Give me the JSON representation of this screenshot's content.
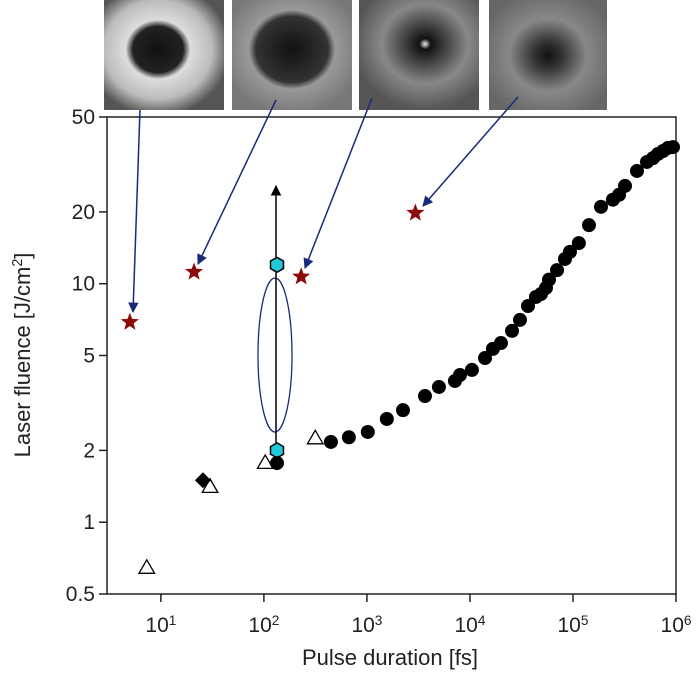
{
  "chart_data": {
    "type": "scatter",
    "x_label": "Pulse duration [fs]",
    "y_label": "Laser fluence [J/cm^2]",
    "xscale": "log",
    "yscale": "log",
    "xlim": [
      3,
      1000000
    ],
    "ylim": [
      0.5,
      50
    ],
    "xticks": [
      {
        "value": 10,
        "label": "10^1"
      },
      {
        "value": 100,
        "label": "10^2"
      },
      {
        "value": 1000,
        "label": "10^3"
      },
      {
        "value": 10000,
        "label": "10^4"
      },
      {
        "value": 100000,
        "label": "10^5"
      },
      {
        "value": 1000000,
        "label": "10^6"
      }
    ],
    "yticks": [
      0.5,
      1,
      2,
      5,
      10,
      20,
      50
    ],
    "series": [
      {
        "marker": "star",
        "color": "#8b0a0a",
        "x": [
          5,
          21,
          230,
          2950
        ],
        "values": [
          6.9,
          11.2,
          10.7,
          19.8
        ]
      },
      {
        "marker": "triangle",
        "color": "#000000",
        "x": [
          7.3,
          30,
          103,
          315
        ],
        "values": [
          0.65,
          1.42,
          1.79,
          2.27
        ]
      },
      {
        "marker": "diamond",
        "color": "#000000",
        "x": [
          25.6
        ],
        "values": [
          1.5
        ]
      },
      {
        "marker": "hexagon",
        "color": "#22c8d8",
        "x": [
          134,
          134
        ],
        "values": [
          12,
          2
        ]
      },
      {
        "marker": "circle",
        "color": "#000000",
        "x": [
          134,
          447,
          668,
          1020,
          1560,
          2240,
          3660,
          5000,
          7150,
          8000,
          10450,
          14000,
          16700,
          20000,
          25600,
          30600,
          36600,
          43700,
          48900,
          54700,
          58500,
          70000,
          83600,
          93500,
          114000,
          143000,
          187000,
          244000,
          280000,
          320000,
          418000,
          523000,
          598000,
          668000,
          748000,
          836000,
          935000
        ],
        "values": [
          1.77,
          2.17,
          2.27,
          2.39,
          2.71,
          2.95,
          3.38,
          3.69,
          3.91,
          4.14,
          4.35,
          4.88,
          5.33,
          5.64,
          6.34,
          7.05,
          8.06,
          8.8,
          9.05,
          9.6,
          10.4,
          11.4,
          12.7,
          13.6,
          14.8,
          17.6,
          21,
          22.5,
          23.6,
          25.7,
          29.7,
          32.4,
          33.6,
          35,
          36,
          37.1,
          37.4
        ]
      }
    ]
  }
}
